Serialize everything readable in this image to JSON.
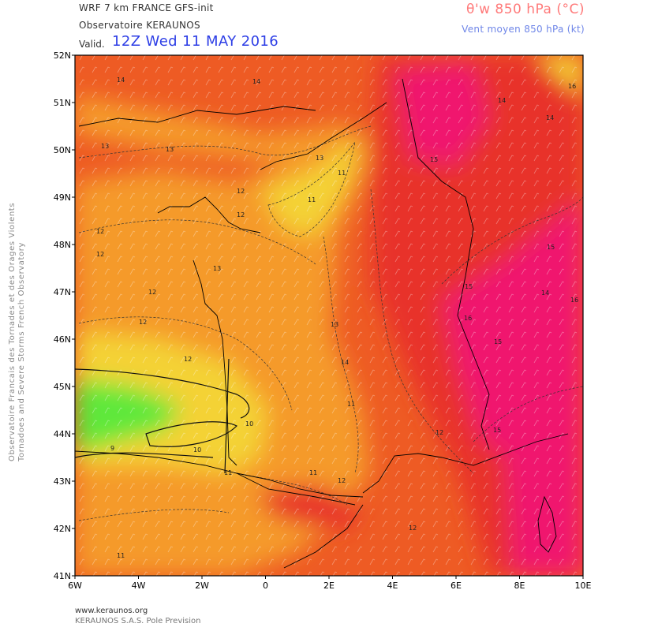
{
  "header": {
    "model": "WRF 7 km FRANCE  GFS-init",
    "organization": "Observatoire KERAUNOS",
    "valid_label": "Valid.",
    "valid_time": "12Z Wed 11 MAY 2016",
    "parameter": "θ'w 850 hPa (°C)",
    "wind": "Vent moyen 850 hPa (kt)"
  },
  "side_text": {
    "line1": "Observatoire Francais des Tornades et des Orages Violents",
    "line2": "Tornadoes and Severe Storms French Observatory"
  },
  "footer": {
    "url": "www.keraunos.org",
    "credit": "KERAUNOS S.A.S. Pole Prevision"
  },
  "map": {
    "lat_labels": [
      "52N",
      "51N",
      "50N",
      "49N",
      "48N",
      "47N",
      "46N",
      "45N",
      "44N",
      "43N",
      "42N",
      "41N"
    ],
    "lon_labels": [
      "6W",
      "4W",
      "2W",
      "0",
      "2E",
      "4E",
      "6E",
      "8E",
      "10E"
    ],
    "extent": {
      "lon_min": -6,
      "lon_max": 10,
      "lat_min": 41,
      "lat_max": 52
    },
    "colors": {
      "cool_green": "#5ee83a",
      "yellow": "#f4d235",
      "orange": "#f59a2c",
      "orange_red": "#ee5b24",
      "red": "#e8302a",
      "magenta": "#f0146e"
    },
    "contour_labels": [
      "14",
      "14",
      "13",
      "13",
      "13",
      "12",
      "12",
      "12",
      "11",
      "11",
      "10",
      "10",
      "9",
      "13",
      "12",
      "12",
      "11",
      "12",
      "14",
      "14",
      "15",
      "15",
      "16",
      "15",
      "15",
      "16",
      "15",
      "14",
      "16",
      "12",
      "11",
      "12",
      "13",
      "14",
      "11",
      "11",
      "12",
      "12"
    ]
  }
}
